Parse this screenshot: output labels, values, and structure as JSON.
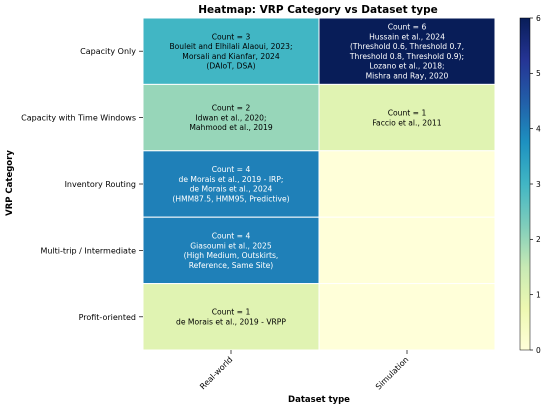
{
  "chart_data": {
    "type": "heatmap",
    "title": "Heatmap: VRP Category vs Dataset type",
    "xlabel": "Dataset type",
    "ylabel": "VRP Category",
    "x_categories": [
      "Real-world",
      "Simulation"
    ],
    "y_categories": [
      "Capacity Only",
      "Capacity with Time Windows",
      "Inventory Routing",
      "Multi-trip / Intermediate",
      "Profit-oriented"
    ],
    "values": [
      [
        3,
        6
      ],
      [
        2,
        1
      ],
      [
        4,
        0
      ],
      [
        4,
        0
      ],
      [
        1,
        0
      ]
    ],
    "annotations": [
      [
        [
          "Count = 3",
          "Bouleit and Elhilali Alaoui, 2023;",
          "Morsali and Kianfar, 2024",
          "(DAIoT, DSA)"
        ],
        [
          "Count = 6",
          "Hussain et al., 2024",
          "(Threshold 0.6, Threshold 0.7,",
          "Threshold 0.8, Threshold 0.9);",
          "Lozano et al., 2018;",
          "Mishra and Ray, 2020"
        ]
      ],
      [
        [
          "Count = 2",
          "Idwan et al., 2020;",
          "Mahmood et al., 2019"
        ],
        [
          "Count = 1",
          "Faccio et al., 2011"
        ]
      ],
      [
        [
          "Count = 4",
          "de Morais et al., 2019 - IRP;",
          "de Morais et al., 2024",
          "(HMM87.5, HMM95, Predictive)"
        ],
        []
      ],
      [
        [
          "Count = 4",
          "Giasoumi et al., 2025",
          "(High Medium, Outskirts,",
          "Reference, Same Site)"
        ],
        []
      ],
      [
        [
          "Count = 1",
          "de Morais et al., 2019 - VRPP"
        ],
        []
      ]
    ],
    "colorbar": {
      "range": [
        0,
        6
      ],
      "ticks": [
        "0",
        "1",
        "2",
        "3",
        "4",
        "5",
        "6"
      ],
      "colormap": "YlGnBu"
    },
    "grid": false,
    "legend": "colorbar-right"
  }
}
